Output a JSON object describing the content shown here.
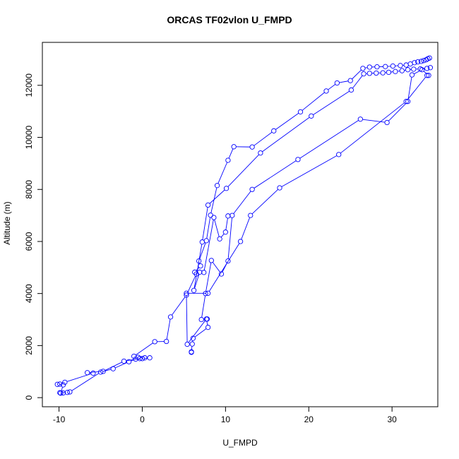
{
  "chart_data": {
    "type": "line",
    "title": "ORCAS TF02vlon U_FMPD",
    "xlabel": "U_FMPD",
    "ylabel": "Altitude (m)",
    "xlim": [
      -12,
      35.5
    ],
    "ylim": [
      -350,
      13650
    ],
    "xticks": [
      -10,
      0,
      10,
      20,
      30
    ],
    "yticks": [
      0,
      2000,
      4000,
      6000,
      8000,
      10000,
      12000
    ],
    "marker": "open-circle",
    "line_color": "#0000ff",
    "grid": false,
    "series": [
      {
        "x": [
          -9.8,
          -9.5,
          -10.2,
          -9.9,
          -9.3,
          -5.9,
          -6.6,
          -4.7,
          -2.2,
          -0.3,
          0.3,
          -0.5,
          -1.0,
          1.5,
          2.9,
          3.4,
          5.3,
          6.5,
          6.3,
          7.0,
          6.8,
          7.7,
          8.2,
          9.0,
          10.3,
          11.0,
          13.2,
          15.8,
          19.0,
          22.1,
          23.4,
          25.0,
          26.5,
          27.3,
          28.2,
          29.2,
          30.1,
          31.0,
          31.7,
          32.2,
          32.7,
          33.1,
          33.5,
          33.8,
          34.1,
          34.3,
          34.5
        ],
        "y": [
          170,
          490,
          510,
          520,
          590,
          940,
          960,
          1010,
          1400,
          1500,
          1530,
          1550,
          1590,
          2150,
          2160,
          3100,
          3940,
          4750,
          4820,
          5060,
          5250,
          6030,
          7010,
          8150,
          9120,
          9640,
          9630,
          10250,
          10980,
          11780,
          12090,
          12180,
          12650,
          12700,
          12710,
          12720,
          12740,
          12760,
          12780,
          12820,
          12870,
          12900,
          12920,
          12950,
          12980,
          13020,
          13050
        ]
      },
      {
        "x": [
          34.6,
          34.2,
          33.4,
          32.6,
          31.9,
          31.2,
          30.4,
          29.6,
          28.9,
          28.1,
          27.3,
          26.6,
          25.1,
          20.3,
          14.2,
          10.1,
          7.9,
          7.2,
          6.2,
          6.9,
          7.4,
          8.6,
          9.3,
          10.0,
          10.3
        ],
        "y": [
          12680,
          12650,
          12630,
          12620,
          12600,
          12560,
          12530,
          12500,
          12480,
          12470,
          12460,
          12440,
          11820,
          10820,
          9400,
          8040,
          7400,
          5980,
          4120,
          4820,
          4810,
          6920,
          6100,
          6360,
          6980
        ]
      },
      {
        "x": [
          34.4,
          33.6,
          32.4,
          31.9,
          29.4,
          26.2,
          18.7,
          13.2,
          10.8,
          10.3,
          9.5,
          8.3,
          7.6,
          7.1,
          7.8
        ],
        "y": [
          12380,
          12600,
          12400,
          11380,
          10570,
          10700,
          9150,
          8000,
          7000,
          5250,
          4750,
          5270,
          4000,
          3000,
          3020
        ]
      },
      {
        "x": [
          5.9,
          5.9,
          6.0,
          6.1,
          7.9,
          7.7,
          5.4,
          5.3,
          7.9,
          11.8,
          13.0,
          16.5,
          23.6,
          31.7,
          34.2
        ],
        "y": [
          1740,
          1760,
          2060,
          2280,
          2700,
          3020,
          2050,
          4010,
          4010,
          6000,
          7000,
          8060,
          9340,
          11380,
          12380
        ]
      },
      {
        "x": [
          -9.5,
          -9.9,
          -9.0,
          -8.7,
          -5.0,
          -3.5,
          -1.6,
          -0.8,
          0.0,
          0.9
        ],
        "y": [
          180,
          190,
          200,
          220,
          980,
          1110,
          1380,
          1480,
          1500,
          1530
        ]
      }
    ]
  }
}
